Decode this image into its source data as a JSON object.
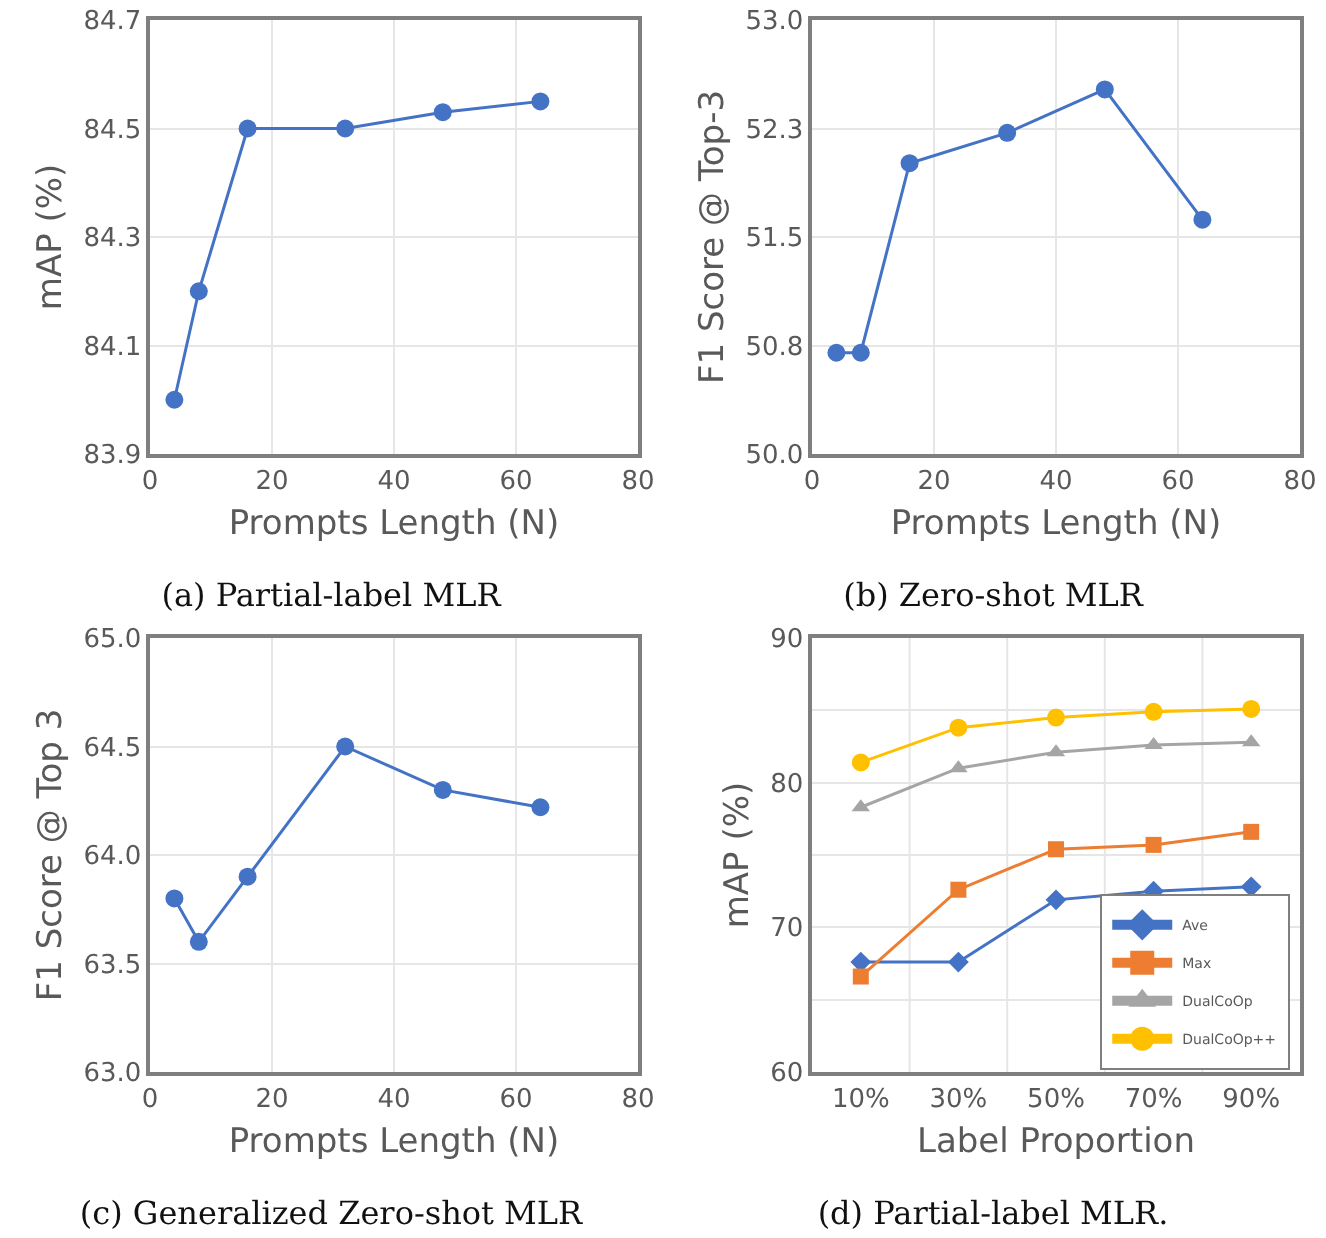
{
  "chart_data": [
    {
      "type": "line",
      "title": "(a) Partial-label MLR",
      "xlabel": "Prompts Length (N)",
      "ylabel": "mAP (%)",
      "x": [
        4,
        8,
        16,
        32,
        48,
        64
      ],
      "series": [
        {
          "color": "#4472c4",
          "values": [
            84.0,
            84.2,
            84.5,
            84.5,
            84.53,
            84.55
          ]
        }
      ],
      "xlim": [
        0,
        80
      ],
      "xticks": [
        0,
        20,
        40,
        60,
        80
      ],
      "ylim": [
        83.9,
        84.7
      ],
      "yticks": [
        83.9,
        84.1,
        84.3,
        84.5,
        84.7
      ],
      "grid": true,
      "marker": "circle",
      "line_style": "solid"
    },
    {
      "type": "line",
      "title": "(b) Zero-shot MLR",
      "xlabel": "Prompts Length (N)",
      "ylabel": "F1 Score @ Top-3",
      "x": [
        4,
        8,
        16,
        32,
        48,
        64
      ],
      "series": [
        {
          "color": "#4472c4",
          "values": [
            50.7,
            50.7,
            52.01,
            52.22,
            52.52,
            51.62
          ]
        }
      ],
      "xlim": [
        0,
        80
      ],
      "xticks": [
        0,
        20,
        40,
        60,
        80
      ],
      "ylim": [
        50.0,
        53.0
      ],
      "yticks": [
        {
          "value": 50.0,
          "label": "50.0"
        },
        {
          "value": 50.75,
          "label": "50.8"
        },
        {
          "value": 51.5,
          "label": "51.5"
        },
        {
          "value": 52.25,
          "label": "52.3"
        },
        {
          "value": 53.0,
          "label": "53.0"
        }
      ],
      "grid": true,
      "marker": "circle",
      "line_style": "solid"
    },
    {
      "type": "line",
      "title": "(c) Generalized Zero-shot MLR",
      "xlabel": "Prompts Length (N)",
      "ylabel": "F1 Score @ Top 3",
      "x": [
        4,
        8,
        16,
        32,
        48,
        64
      ],
      "series": [
        {
          "color": "#4472c4",
          "values": [
            63.8,
            63.6,
            63.9,
            64.5,
            64.3,
            64.22
          ]
        }
      ],
      "xlim": [
        0,
        80
      ],
      "xticks": [
        0,
        20,
        40,
        60,
        80
      ],
      "ylim": [
        63.0,
        65.0
      ],
      "yticks": [
        {
          "value": 63.0,
          "label": "63.0"
        },
        63.5,
        {
          "value": 64.0,
          "label": "64.0"
        },
        64.5,
        {
          "value": 65.0,
          "label": "65.0"
        }
      ],
      "grid": true,
      "marker": "circle",
      "line_style": "solid"
    },
    {
      "type": "line",
      "title": "(d) Partial-label MLR.",
      "xlabel": "Label Proportion",
      "ylabel": "mAP (%)",
      "categories": [
        "10%",
        "30%",
        "50%",
        "70%",
        "90%"
      ],
      "series": [
        {
          "name": "Ave",
          "color": "#4472c4",
          "marker": "diamond",
          "values": [
            67.6,
            67.6,
            71.9,
            72.5,
            72.8
          ]
        },
        {
          "name": "Max",
          "color": "#ed7d31",
          "marker": "square",
          "values": [
            66.6,
            72.6,
            75.4,
            75.7,
            76.6
          ]
        },
        {
          "name": "DualCoOp",
          "color": "#a5a5a5",
          "marker": "triangle",
          "values": [
            78.3,
            81.0,
            82.1,
            82.6,
            82.8
          ]
        },
        {
          "name": "DualCoOp++",
          "color": "#ffc000",
          "marker": "circle",
          "values": [
            81.4,
            83.8,
            84.5,
            84.9,
            85.1
          ]
        }
      ],
      "ylim": [
        60,
        90
      ],
      "yticks": [
        60,
        {
          "value": 65,
          "label": null
        },
        70,
        {
          "value": 75,
          "label": null
        },
        80,
        {
          "value": 85,
          "label": null
        },
        90
      ],
      "grid": true,
      "legend": "bottom right",
      "line_style": "solid"
    }
  ]
}
